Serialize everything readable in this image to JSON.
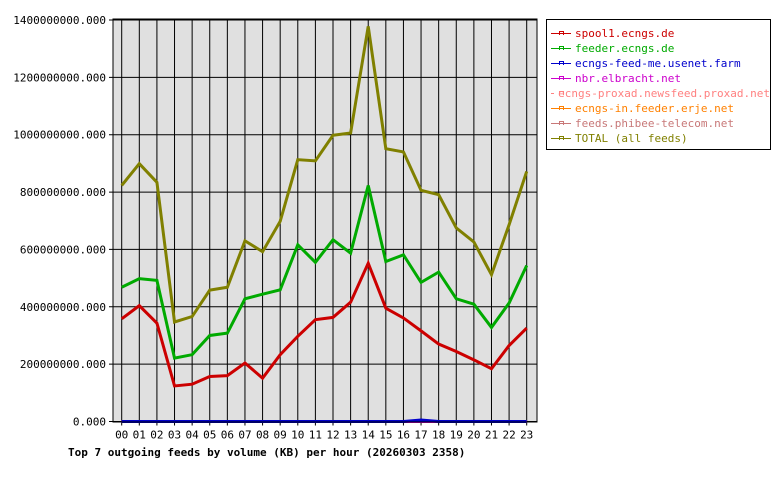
{
  "chart_data": {
    "type": "line",
    "title": "Top 7 outgoing feeds by volume (KB) per hour (20260303 2358)",
    "xlabel": "",
    "ylabel": "",
    "ylim": [
      0,
      1400000000
    ],
    "yticks": [
      "0.000",
      "200000000.000",
      "400000000.000",
      "600000000.000",
      "800000000.000",
      "1000000000.000",
      "1200000000.000",
      "1400000000.000"
    ],
    "grid": true,
    "legend_position": "right",
    "categories": [
      "00",
      "01",
      "02",
      "03",
      "04",
      "05",
      "06",
      "07",
      "08",
      "09",
      "10",
      "11",
      "12",
      "13",
      "14",
      "15",
      "16",
      "17",
      "18",
      "19",
      "20",
      "21",
      "22",
      "23"
    ],
    "series": [
      {
        "name": "spool1.ecngs.de",
        "color": "#cc0000",
        "values": [
          358000000,
          404000000,
          343000000,
          124000000,
          130000000,
          157000000,
          160000000,
          204000000,
          151000000,
          233000000,
          297000000,
          355000000,
          363000000,
          416000000,
          552000000,
          395000000,
          361000000,
          316000000,
          270000000,
          244000000,
          215000000,
          184000000,
          265000000,
          326000000
        ]
      },
      {
        "name": "feeder.ecngs.de",
        "color": "#00aa00",
        "values": [
          468000000,
          498000000,
          492000000,
          221000000,
          233000000,
          300000000,
          308000000,
          428000000,
          444000000,
          459000000,
          616000000,
          555000000,
          634000000,
          587000000,
          823000000,
          558000000,
          581000000,
          485000000,
          521000000,
          428000000,
          409000000,
          328000000,
          413000000,
          544000000
        ]
      },
      {
        "name": "ecngs-feed-me.usenet.farm",
        "color": "#0000cc",
        "values": [
          0,
          0,
          0,
          0,
          0,
          0,
          0,
          0,
          0,
          0,
          0,
          0,
          0,
          0,
          0,
          0,
          0,
          5000000,
          0,
          0,
          0,
          0,
          0,
          0
        ]
      },
      {
        "name": "nbr.elbracht.net",
        "color": "#cc00cc",
        "values": [
          0,
          0,
          0,
          0,
          0,
          0,
          0,
          0,
          0,
          0,
          0,
          0,
          0,
          0,
          0,
          0,
          0,
          0,
          0,
          0,
          0,
          0,
          0,
          0
        ]
      },
      {
        "name": "ecngs-proxad.newsfeed.proxad.net",
        "color": "#ff8080",
        "values": [
          0,
          0,
          0,
          0,
          0,
          0,
          0,
          0,
          0,
          0,
          0,
          0,
          0,
          0,
          0,
          0,
          0,
          0,
          0,
          0,
          0,
          0,
          0,
          0
        ]
      },
      {
        "name": "ecngs-in.feeder.erje.net",
        "color": "#ff8000",
        "values": [
          0,
          0,
          0,
          0,
          0,
          0,
          0,
          0,
          0,
          0,
          0,
          0,
          0,
          0,
          0,
          0,
          0,
          0,
          0,
          0,
          0,
          0,
          0,
          0
        ]
      },
      {
        "name": "feeds.phibee-telecom.net",
        "color": "#c87878",
        "values": [
          0,
          0,
          0,
          0,
          0,
          0,
          0,
          0,
          0,
          0,
          0,
          0,
          0,
          0,
          0,
          0,
          0,
          0,
          0,
          0,
          0,
          0,
          0,
          0
        ]
      },
      {
        "name": "TOTAL (all feeds)",
        "color": "#808000",
        "values": [
          823000000,
          899000000,
          834000000,
          347000000,
          366000000,
          458000000,
          468000000,
          630000000,
          592000000,
          698000000,
          913000000,
          909000000,
          998000000,
          1006000000,
          1378000000,
          951000000,
          940000000,
          806000000,
          791000000,
          675000000,
          626000000,
          512000000,
          686000000,
          872000000
        ]
      }
    ]
  }
}
